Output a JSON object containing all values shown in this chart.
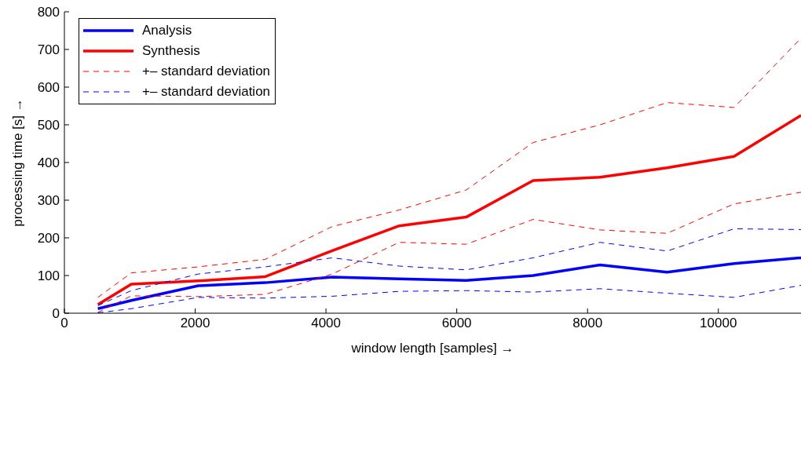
{
  "chart_data": {
    "type": "line",
    "xlabel": "window length [samples] →",
    "ylabel": "processing time [s] →",
    "x": [
      512,
      1024,
      2048,
      3072,
      4096,
      5120,
      6144,
      7168,
      8192,
      9216,
      10240,
      11264
    ],
    "xlim": [
      0,
      11264
    ],
    "xticks": [
      0,
      2000,
      4000,
      6000,
      8000,
      10000
    ],
    "ylim": [
      0,
      800
    ],
    "yticks": [
      0,
      100,
      200,
      300,
      400,
      500,
      600,
      700,
      800
    ],
    "grid": false,
    "legend": "top left",
    "marker": "none",
    "series": [
      {
        "name": "Analysis",
        "color": "#0000ff",
        "line_style": "solid",
        "values": [
          12,
          34,
          73,
          81,
          96,
          91,
          87,
          100,
          128,
          109,
          132,
          147
        ]
      },
      {
        "name": "Synthesis",
        "color": "#ff0000",
        "line_style": "solid",
        "values": [
          23,
          77,
          86,
          97,
          166,
          232,
          255,
          352,
          361,
          386,
          416,
          525
        ]
      },
      {
        "name": "+– standard deviation",
        "color": "#ff0000",
        "line_style": "dashed",
        "values": [
          42,
          107,
          123,
          143,
          230,
          274,
          327,
          453,
          500,
          559,
          546,
          730
        ]
      },
      {
        "name": "+– standard deviation",
        "color": "#0000ff",
        "line_style": "dashed",
        "values": [
          20,
          60,
          104,
          123,
          147,
          125,
          115,
          147,
          188,
          165,
          224,
          222
        ]
      },
      {
        "color": "#ff0000",
        "line_style": "dashed",
        "values": [
          2,
          46,
          44,
          50,
          104,
          188,
          183,
          249,
          221,
          212,
          290,
          321
        ]
      },
      {
        "color": "#0000ff",
        "line_style": "dashed",
        "values": [
          1,
          12,
          42,
          40,
          45,
          58,
          60,
          56,
          65,
          53,
          42,
          74
        ]
      }
    ]
  }
}
